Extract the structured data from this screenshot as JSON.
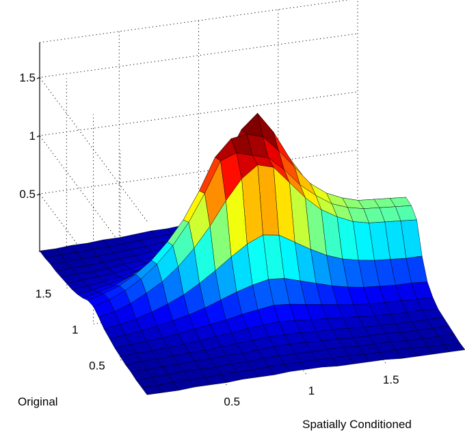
{
  "chart_data": {
    "type": "surface",
    "title": "",
    "xlabel": "Spatially Conditioned",
    "ylabel": "Original",
    "zlabel": "",
    "x_range": [
      0,
      2
    ],
    "y_range": [
      0,
      2
    ],
    "z_range": [
      0,
      1.8
    ],
    "x_ticks": [
      {
        "value": 0.5,
        "label": "0.5"
      },
      {
        "value": 1,
        "label": "1"
      },
      {
        "value": 1.5,
        "label": "1.5"
      }
    ],
    "y_ticks": [
      {
        "value": 0.5,
        "label": "0.5"
      },
      {
        "value": 1,
        "label": "1"
      },
      {
        "value": 1.5,
        "label": "1.5"
      }
    ],
    "z_ticks": [
      {
        "value": 0.5,
        "label": "0.5"
      },
      {
        "value": 1,
        "label": "1"
      },
      {
        "value": 1.5,
        "label": "1.5"
      }
    ],
    "grid": true,
    "colormap": [
      "#00008f",
      "#0000ff",
      "#0080ff",
      "#00ffff",
      "#80ff80",
      "#ffff00",
      "#ff8000",
      "#ff0000",
      "#800000"
    ],
    "color_limits": [
      0,
      1.35
    ],
    "surface": {
      "x": [
        0,
        0.1,
        0.2,
        0.3,
        0.4,
        0.5,
        0.6,
        0.7,
        0.8,
        0.9,
        1.0,
        1.1,
        1.2,
        1.3,
        1.4,
        1.5,
        1.6,
        1.7,
        1.8,
        1.9,
        2.0
      ],
      "y": [
        0,
        0.1,
        0.2,
        0.3,
        0.4,
        0.5,
        0.6,
        0.7,
        0.8,
        0.9,
        1.0,
        1.1,
        1.2,
        1.3,
        1.4,
        1.5,
        1.6,
        1.7,
        1.8,
        1.9,
        2.0
      ],
      "z": [
        [
          0.01,
          0.01,
          0.01,
          0.02,
          0.02,
          0.03,
          0.04,
          0.06,
          0.08,
          0.12,
          0.15,
          0.14,
          0.1,
          0.07,
          0.05,
          0.04,
          0.03,
          0.02,
          0.02,
          0.01,
          0.01
        ],
        [
          0.01,
          0.01,
          0.02,
          0.02,
          0.03,
          0.04,
          0.05,
          0.07,
          0.1,
          0.15,
          0.19,
          0.18,
          0.13,
          0.09,
          0.06,
          0.05,
          0.04,
          0.03,
          0.02,
          0.02,
          0.01
        ],
        [
          0.01,
          0.02,
          0.02,
          0.03,
          0.03,
          0.04,
          0.06,
          0.09,
          0.13,
          0.2,
          0.25,
          0.23,
          0.17,
          0.12,
          0.08,
          0.06,
          0.04,
          0.03,
          0.03,
          0.02,
          0.02
        ],
        [
          0.02,
          0.02,
          0.03,
          0.03,
          0.04,
          0.05,
          0.07,
          0.11,
          0.17,
          0.27,
          0.33,
          0.31,
          0.23,
          0.15,
          0.1,
          0.07,
          0.05,
          0.04,
          0.03,
          0.03,
          0.02
        ],
        [
          0.02,
          0.02,
          0.03,
          0.04,
          0.05,
          0.06,
          0.09,
          0.14,
          0.22,
          0.35,
          0.44,
          0.41,
          0.3,
          0.2,
          0.13,
          0.09,
          0.07,
          0.05,
          0.04,
          0.03,
          0.03
        ],
        [
          0.02,
          0.03,
          0.03,
          0.04,
          0.05,
          0.07,
          0.11,
          0.17,
          0.28,
          0.46,
          0.58,
          0.55,
          0.4,
          0.26,
          0.17,
          0.12,
          0.08,
          0.06,
          0.05,
          0.04,
          0.03
        ],
        [
          0.03,
          0.03,
          0.04,
          0.05,
          0.06,
          0.09,
          0.13,
          0.21,
          0.36,
          0.6,
          0.76,
          0.72,
          0.53,
          0.34,
          0.22,
          0.15,
          0.1,
          0.08,
          0.06,
          0.05,
          0.04
        ],
        [
          0.03,
          0.03,
          0.04,
          0.05,
          0.07,
          0.1,
          0.15,
          0.26,
          0.45,
          0.77,
          0.99,
          0.95,
          0.7,
          0.45,
          0.28,
          0.19,
          0.13,
          0.09,
          0.07,
          0.06,
          0.05
        ],
        [
          0.03,
          0.04,
          0.05,
          0.06,
          0.08,
          0.12,
          0.18,
          0.31,
          0.55,
          0.97,
          1.25,
          1.22,
          0.9,
          0.58,
          0.36,
          0.24,
          0.16,
          0.11,
          0.08,
          0.07,
          0.05
        ],
        [
          0.04,
          0.04,
          0.05,
          0.07,
          0.09,
          0.13,
          0.2,
          0.35,
          0.64,
          1.14,
          1.3,
          1.36,
          1.12,
          0.72,
          0.44,
          0.28,
          0.19,
          0.13,
          0.1,
          0.08,
          0.06
        ],
        [
          0.04,
          0.04,
          0.05,
          0.07,
          0.09,
          0.14,
          0.22,
          0.38,
          0.7,
          1.24,
          1.26,
          1.38,
          1.36,
          0.86,
          0.51,
          0.32,
          0.21,
          0.14,
          0.11,
          0.08,
          0.06
        ],
        [
          0.04,
          0.04,
          0.05,
          0.07,
          0.09,
          0.13,
          0.21,
          0.37,
          0.68,
          1.2,
          1.22,
          1.34,
          1.48,
          0.95,
          0.55,
          0.34,
          0.22,
          0.15,
          0.11,
          0.08,
          0.06
        ],
        [
          0.03,
          0.04,
          0.05,
          0.06,
          0.08,
          0.12,
          0.19,
          0.33,
          0.6,
          1.05,
          1.1,
          1.2,
          1.3,
          0.9,
          0.52,
          0.32,
          0.2,
          0.14,
          0.1,
          0.08,
          0.06
        ],
        [
          0.03,
          0.04,
          0.05,
          0.06,
          0.08,
          0.11,
          0.17,
          0.29,
          0.52,
          0.9,
          0.95,
          1.04,
          1.06,
          0.76,
          0.45,
          0.28,
          0.18,
          0.12,
          0.09,
          0.07,
          0.05
        ],
        [
          0.03,
          0.03,
          0.04,
          0.05,
          0.07,
          0.1,
          0.15,
          0.25,
          0.45,
          0.78,
          0.84,
          0.88,
          0.86,
          0.62,
          0.38,
          0.24,
          0.16,
          0.11,
          0.08,
          0.06,
          0.05
        ],
        [
          0.03,
          0.03,
          0.04,
          0.05,
          0.06,
          0.09,
          0.13,
          0.22,
          0.4,
          0.7,
          0.75,
          0.78,
          0.72,
          0.52,
          0.32,
          0.21,
          0.14,
          0.1,
          0.07,
          0.06,
          0.05
        ],
        [
          0.02,
          0.03,
          0.04,
          0.05,
          0.06,
          0.08,
          0.12,
          0.2,
          0.37,
          0.64,
          0.7,
          0.72,
          0.64,
          0.46,
          0.29,
          0.19,
          0.13,
          0.09,
          0.07,
          0.05,
          0.04
        ],
        [
          0.02,
          0.03,
          0.03,
          0.04,
          0.05,
          0.07,
          0.11,
          0.19,
          0.35,
          0.61,
          0.67,
          0.68,
          0.6,
          0.43,
          0.27,
          0.18,
          0.12,
          0.09,
          0.06,
          0.05,
          0.04
        ],
        [
          0.02,
          0.02,
          0.03,
          0.04,
          0.05,
          0.07,
          0.11,
          0.18,
          0.34,
          0.6,
          0.66,
          0.67,
          0.58,
          0.42,
          0.27,
          0.18,
          0.12,
          0.08,
          0.06,
          0.05,
          0.04
        ],
        [
          0.02,
          0.02,
          0.03,
          0.04,
          0.05,
          0.07,
          0.1,
          0.18,
          0.33,
          0.59,
          0.65,
          0.66,
          0.57,
          0.41,
          0.26,
          0.17,
          0.12,
          0.08,
          0.06,
          0.05,
          0.04
        ],
        [
          0.02,
          0.02,
          0.03,
          0.04,
          0.05,
          0.06,
          0.1,
          0.17,
          0.33,
          0.58,
          0.64,
          0.65,
          0.56,
          0.41,
          0.26,
          0.17,
          0.11,
          0.08,
          0.06,
          0.05,
          0.04
        ]
      ]
    }
  }
}
